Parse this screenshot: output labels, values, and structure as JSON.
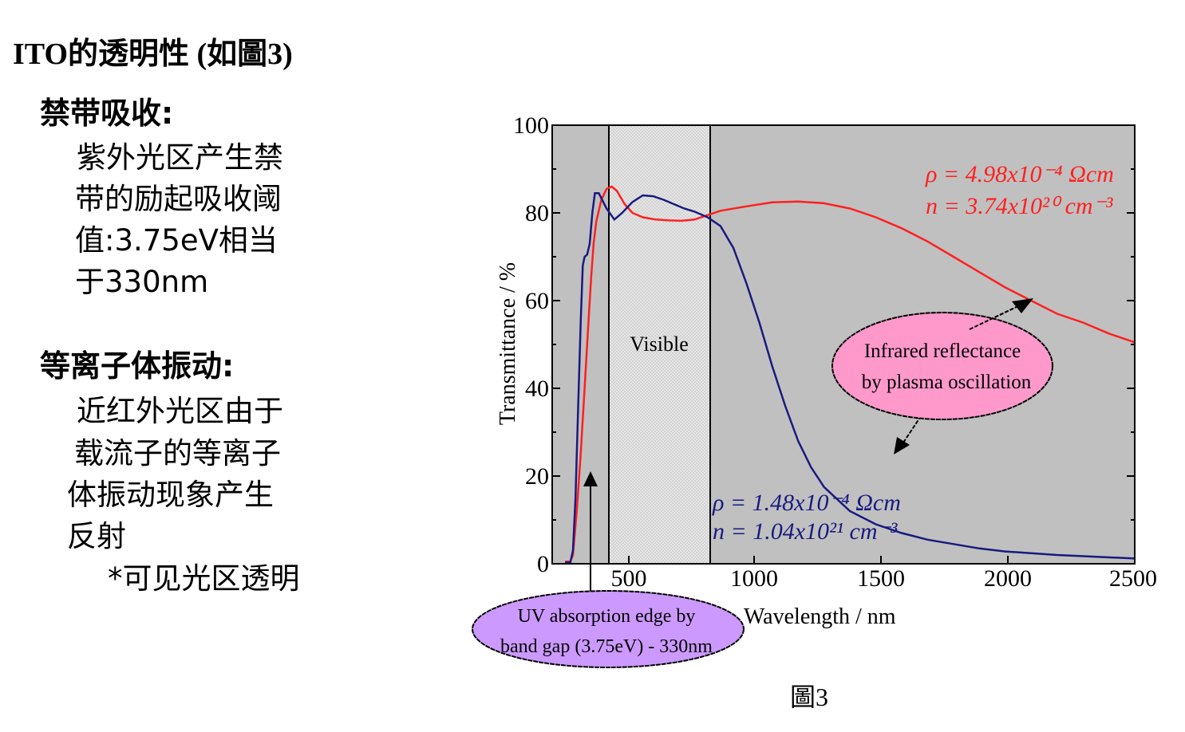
{
  "slide": {
    "title": "ITO的透明性 (如圖3)",
    "section1": {
      "heading": "禁带吸收:",
      "lines": [
        "紫外光区产生禁",
        "带的励起吸收阈",
        "值:3.75eV相当",
        "于330nm"
      ]
    },
    "section2": {
      "heading": "等离子体振动:",
      "lines": [
        "近红外光区由于",
        "载流子的等离子",
        "体振动现象产生",
        "反射"
      ],
      "note": "*可见光区透明"
    },
    "caption": "圖3"
  },
  "chart_data": {
    "type": "line",
    "title": "",
    "xlabel": "Wavelength / nm",
    "ylabel": "Transmittance / %",
    "xlim": [
      250,
      2500
    ],
    "ylim": [
      0,
      100
    ],
    "xticks": [
      500,
      1000,
      1500,
      2000,
      2500
    ],
    "yticks": [
      0,
      20,
      40,
      60,
      80,
      100
    ],
    "grid": false,
    "background_color": "#c0c0c0",
    "visible_region": {
      "label": "Visible",
      "x_start": 400,
      "x_end": 800
    },
    "series": [
      {
        "name": "ρ = 4.98x10^-4 Ωcm, n = 3.74x10^20 cm^-3",
        "color": "#ff2020",
        "label_lines": [
          "ρ = 4.98x10⁻⁴ Ωcm",
          "n = 3.74x10²⁰ cm⁻³"
        ],
        "points": [
          [
            300,
            0.5
          ],
          [
            320,
            0.5
          ],
          [
            330,
            2
          ],
          [
            345,
            12
          ],
          [
            360,
            25
          ],
          [
            375,
            40
          ],
          [
            390,
            55
          ],
          [
            400,
            65
          ],
          [
            410,
            73
          ],
          [
            420,
            78
          ],
          [
            440,
            83
          ],
          [
            460,
            85.5
          ],
          [
            480,
            86
          ],
          [
            500,
            85
          ],
          [
            530,
            82
          ],
          [
            560,
            80
          ],
          [
            600,
            79
          ],
          [
            650,
            78.5
          ],
          [
            700,
            78.3
          ],
          [
            750,
            78.2
          ],
          [
            800,
            78.5
          ],
          [
            850,
            79.5
          ],
          [
            900,
            80.5
          ],
          [
            1000,
            81.5
          ],
          [
            1100,
            82.4
          ],
          [
            1200,
            82.6
          ],
          [
            1300,
            82.2
          ],
          [
            1400,
            81
          ],
          [
            1500,
            79
          ],
          [
            1600,
            76.5
          ],
          [
            1700,
            73.5
          ],
          [
            1800,
            70
          ],
          [
            1900,
            66.5
          ],
          [
            2000,
            63
          ],
          [
            2100,
            60
          ],
          [
            2200,
            57
          ],
          [
            2300,
            55
          ],
          [
            2400,
            52.5
          ],
          [
            2500,
            50.5
          ]
        ]
      },
      {
        "name": "ρ = 1.48x10^-4 Ωcm, n = 1.04x10^21 cm^-3",
        "color": "#1a1a80",
        "label_lines": [
          "ρ = 1.48x10⁻⁴ Ωcm",
          "n = 1.04x10²¹ cm⁻³"
        ],
        "points": [
          [
            300,
            0.3
          ],
          [
            320,
            0.3
          ],
          [
            330,
            3
          ],
          [
            340,
            15
          ],
          [
            350,
            35
          ],
          [
            360,
            55
          ],
          [
            368,
            68
          ],
          [
            375,
            70
          ],
          [
            385,
            70.5
          ],
          [
            395,
            73
          ],
          [
            405,
            80
          ],
          [
            415,
            84.5
          ],
          [
            430,
            84.5
          ],
          [
            460,
            81
          ],
          [
            490,
            78.5
          ],
          [
            520,
            80
          ],
          [
            560,
            82.5
          ],
          [
            600,
            84
          ],
          [
            640,
            83.8
          ],
          [
            680,
            83
          ],
          [
            720,
            82
          ],
          [
            760,
            81
          ],
          [
            800,
            80.3
          ],
          [
            850,
            79
          ],
          [
            900,
            77
          ],
          [
            950,
            72
          ],
          [
            1000,
            64
          ],
          [
            1050,
            55
          ],
          [
            1100,
            45
          ],
          [
            1150,
            36
          ],
          [
            1200,
            28
          ],
          [
            1250,
            22
          ],
          [
            1300,
            17.5
          ],
          [
            1400,
            12
          ],
          [
            1500,
            9
          ],
          [
            1600,
            7
          ],
          [
            1700,
            5.5
          ],
          [
            1800,
            4.5
          ],
          [
            1900,
            3.5
          ],
          [
            2000,
            2.8
          ],
          [
            2200,
            2
          ],
          [
            2500,
            1.2
          ]
        ]
      }
    ],
    "annotations": [
      {
        "text_lines": [
          "Infrared reflectance",
          "by plasma oscillation"
        ],
        "shape": "ellipse",
        "fill": "#ff99cc"
      },
      {
        "text_lines": [
          "UV absorption edge by",
          "band gap (3.75eV) - 330nm"
        ],
        "shape": "ellipse",
        "fill": "#cc99ff",
        "points_to_x": 330
      }
    ]
  }
}
